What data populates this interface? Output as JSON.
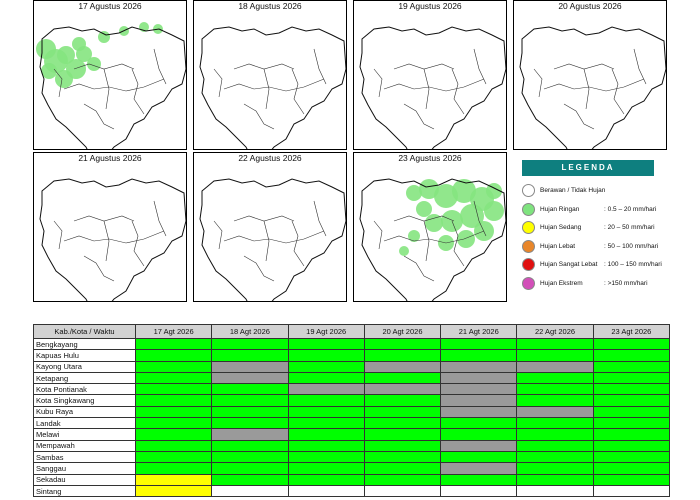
{
  "panels": [
    {
      "date": "17 Agustus 2026",
      "rain": "west"
    },
    {
      "date": "18 Agustus 2026",
      "rain": "none"
    },
    {
      "date": "19 Agustus 2026",
      "rain": "none"
    },
    {
      "date": "20 Agustus 2026",
      "rain": "none"
    },
    {
      "date": "21 Agustus 2026",
      "rain": "none"
    },
    {
      "date": "22 Agustus 2026",
      "rain": "none"
    },
    {
      "date": "23 Agustus 2026",
      "rain": "east"
    }
  ],
  "legend": {
    "title": "LEGENDA",
    "items": [
      {
        "label": "Berawan / Tidak Hujan",
        "range": "",
        "color": "#ffffff"
      },
      {
        "label": "Hujan Ringan",
        "range": ": 0.5 – 20 mm/hari",
        "color": "#7fe37f"
      },
      {
        "label": "Hujan Sedang",
        "range": ": 20 – 50 mm/hari",
        "color": "#ffff00"
      },
      {
        "label": "Hujan Lebat",
        "range": ": 50 – 100 mm/hari",
        "color": "#e8862a"
      },
      {
        "label": "Hujan Sangat Lebat",
        "range": ": 100 – 150 mm/hari",
        "color": "#e01010"
      },
      {
        "label": "Hujan Ekstrem",
        "range": ": >150 mm/hari",
        "color": "#d24fb8"
      }
    ]
  },
  "table": {
    "header": [
      "Kab./Kota / Waktu",
      "17 Agt 2026",
      "18 Agt 2026",
      "19 Agt 2026",
      "20 Agt 2026",
      "21 Agt 2026",
      "22 Agt 2026",
      "23 Agt 2026"
    ],
    "rows": [
      {
        "name": "Bengkayang",
        "cells": [
          "G",
          "G",
          "G",
          "G",
          "G",
          "G",
          "G"
        ]
      },
      {
        "name": "Kapuas Hulu",
        "cells": [
          "G",
          "G",
          "G",
          "G",
          "G",
          "G",
          "G"
        ]
      },
      {
        "name": "Kayong Utara",
        "cells": [
          "G",
          "X",
          "G",
          "X",
          "X",
          "X",
          "G"
        ]
      },
      {
        "name": "Ketapang",
        "cells": [
          "G",
          "X",
          "G",
          "G",
          "X",
          "G",
          "G"
        ]
      },
      {
        "name": "Kota Pontianak",
        "cells": [
          "G",
          "G",
          "X",
          "X",
          "X",
          "G",
          "G"
        ]
      },
      {
        "name": "Kota Singkawang",
        "cells": [
          "G",
          "G",
          "G",
          "G",
          "X",
          "G",
          "G"
        ]
      },
      {
        "name": "Kubu Raya",
        "cells": [
          "G",
          "G",
          "G",
          "G",
          "X",
          "X",
          "G"
        ]
      },
      {
        "name": "Landak",
        "cells": [
          "G",
          "G",
          "G",
          "G",
          "G",
          "G",
          "G"
        ]
      },
      {
        "name": "Melawi",
        "cells": [
          "G",
          "X",
          "G",
          "G",
          "G",
          "G",
          "G"
        ]
      },
      {
        "name": "Mempawah",
        "cells": [
          "G",
          "G",
          "G",
          "G",
          "X",
          "G",
          "G"
        ]
      },
      {
        "name": "Sambas",
        "cells": [
          "G",
          "G",
          "G",
          "G",
          "G",
          "G",
          "G"
        ]
      },
      {
        "name": "Sanggau",
        "cells": [
          "G",
          "G",
          "G",
          "G",
          "X",
          "G",
          "G"
        ]
      },
      {
        "name": "Sekadau",
        "cells": [
          "Y",
          "G",
          "G",
          "G",
          "G",
          "G",
          "G"
        ]
      },
      {
        "name": "Sintang",
        "cells": [
          "Y",
          "W",
          "W",
          "W",
          "W",
          "W",
          "W"
        ]
      }
    ]
  }
}
